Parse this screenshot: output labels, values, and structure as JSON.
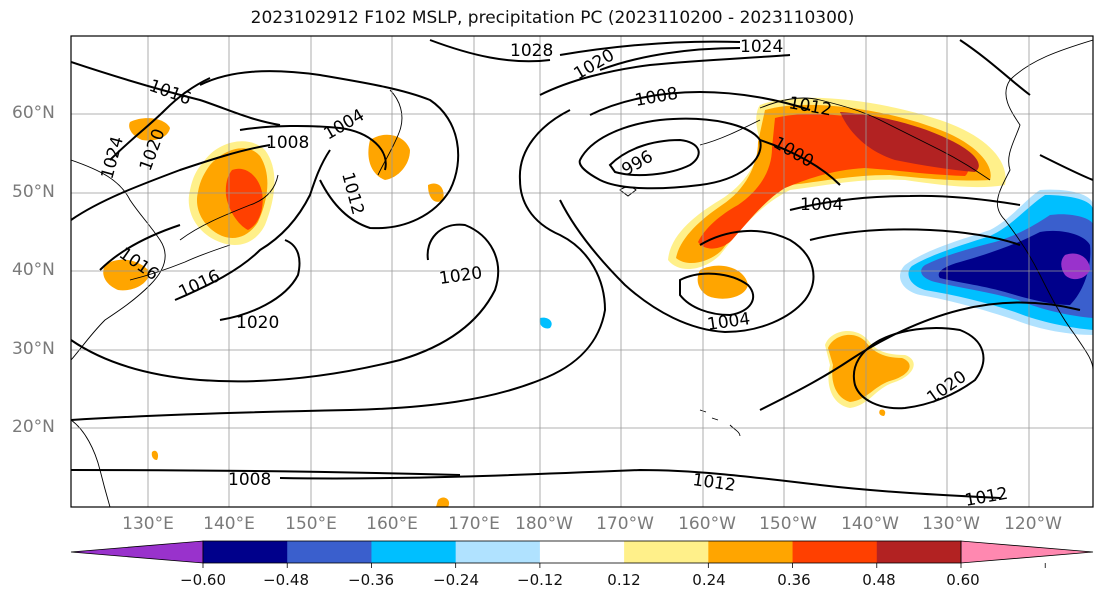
{
  "title": "2023102912 F102 MSLP, precipitation PC (2023110200 - 2023110300)",
  "lat_labels": [
    "60°N",
    "50°N",
    "40°N",
    "30°N",
    "20°N"
  ],
  "lon_labels": [
    "130°E",
    "140°E",
    "150°E",
    "160°E",
    "170°E",
    "180°W",
    "170°W",
    "160°W",
    "150°W",
    "140°W",
    "130°W",
    "120°W"
  ],
  "contour_labels": [
    "1028",
    "1024",
    "1020",
    "1016",
    "1008",
    "1004",
    "1012",
    "1024",
    "1020",
    "1008",
    "1012",
    "996",
    "1000",
    "1004",
    "1016",
    "1016",
    "1020",
    "1004",
    "1020",
    "1008",
    "1012",
    "1012",
    "1020"
  ],
  "colorbar": {
    "ticks": [
      "−0.60",
      "−0.48",
      "−0.36",
      "−0.24",
      "−0.12",
      "0.12",
      "0.24",
      "0.36",
      "0.48",
      "0.60"
    ],
    "colors": [
      "#9932cc",
      "#00008b",
      "#3a5fcd",
      "#00bfff",
      "#b0e2ff",
      "#ffffff",
      "#fff08a",
      "#ffa500",
      "#ff4000",
      "#b22222",
      "#ff88b0"
    ]
  }
}
